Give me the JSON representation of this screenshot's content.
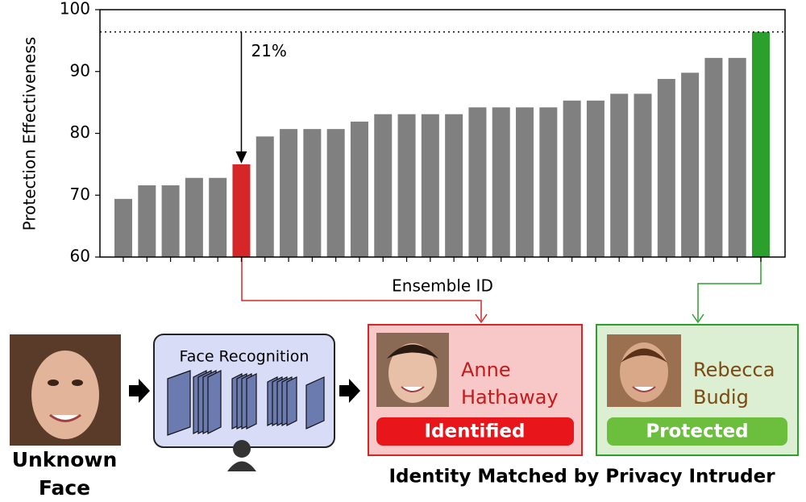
{
  "chart_data": {
    "type": "bar",
    "ylabel": "Protection Effectiveness",
    "xlabel": "Ensemble ID",
    "categories": [
      null,
      null,
      null,
      null,
      null,
      null,
      null,
      null,
      null,
      null,
      null,
      null,
      null,
      null,
      null,
      null,
      null,
      null,
      null,
      null,
      null,
      null,
      null,
      null,
      null,
      null,
      null,
      null
    ],
    "values": [
      69.4,
      71.6,
      71.6,
      72.8,
      72.8,
      75.0,
      79.5,
      80.7,
      80.7,
      80.7,
      81.9,
      83.1,
      83.1,
      83.1,
      83.1,
      84.2,
      84.2,
      84.2,
      84.2,
      85.3,
      85.3,
      86.4,
      86.4,
      88.8,
      89.8,
      92.2,
      92.2,
      96.4
    ],
    "colors": [
      "#808080",
      "#808080",
      "#808080",
      "#808080",
      "#808080",
      "#d62728",
      "#808080",
      "#808080",
      "#808080",
      "#808080",
      "#808080",
      "#808080",
      "#808080",
      "#808080",
      "#808080",
      "#808080",
      "#808080",
      "#808080",
      "#808080",
      "#808080",
      "#808080",
      "#808080",
      "#808080",
      "#808080",
      "#808080",
      "#808080",
      "#808080",
      "#2ca02c"
    ],
    "ylim": [
      60,
      100
    ],
    "yticks": [
      60,
      70,
      80,
      90,
      100
    ],
    "reference_line": 96.4,
    "annotation": "21%"
  },
  "diagram": {
    "input_label": [
      "Unknown",
      "Face"
    ],
    "model_label": "Face Recognition",
    "match_1": {
      "name": [
        "Anne",
        "Hathaway"
      ],
      "status": "Identified"
    },
    "match_2": {
      "name": [
        "Rebecca",
        "Budig"
      ],
      "status": "Protected"
    },
    "caption": "Identity Matched by Privacy Intruder"
  }
}
